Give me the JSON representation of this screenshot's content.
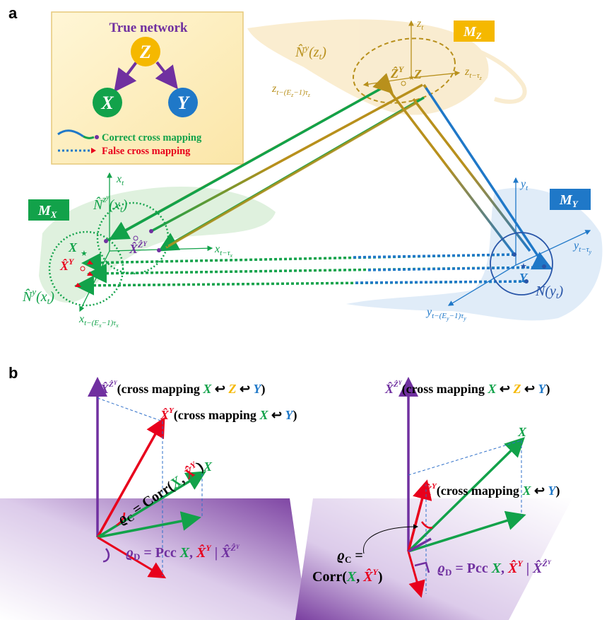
{
  "panel_a": {
    "label": "a",
    "legend": {
      "title": "True network",
      "nodes": [
        "Z",
        "X",
        "Y"
      ],
      "correct": "Correct cross mapping",
      "false": "False cross mapping"
    },
    "manifolds": {
      "mx": "M",
      "mx_sub": "X",
      "my": "M",
      "my_sub": "Y",
      "mz": "M",
      "mz_sub": "Z"
    },
    "axes_x": {
      "t": "x",
      "t_sub": "t",
      "lag": "x",
      "lag_sub": "t−τ",
      "lag_sub2": "x",
      "emb": "x",
      "emb_sub": "t−(E",
      "emb_sub2": "x",
      "emb_sub3": "−1)τ",
      "emb_sub4": "x"
    },
    "axes_y": {
      "t": "y",
      "t_sub": "t",
      "lag": "y",
      "lag_sub": "t−τ",
      "lag_sub2": "y",
      "emb": "y",
      "emb_sub": "t−(E",
      "emb_sub2": "y",
      "emb_sub3": "−1)τ",
      "emb_sub4": "y"
    },
    "axes_z": {
      "t": "z",
      "t_sub": "t",
      "lag": "z",
      "lag_sub": "t−τ",
      "lag_sub2": "z",
      "emb": "z",
      "emb_sub": "t−(E",
      "emb_sub2": "z",
      "emb_sub3": "−1)τ",
      "emb_sub4": "z"
    },
    "neighborhoods": {
      "nz": "N̂",
      "nz_sup": "y",
      "nz_arg": "(z",
      "nz_arg_sub": "t",
      "nz_close": ")",
      "nx_zy": "N̂",
      "nx_zy_sup": "z",
      "nx_zy_sup2": "y",
      "nx_zy_arg": "(x",
      "nx_zy_arg_sub": "t",
      "nx_zy_close": ")",
      "nx_y": "N̂",
      "nx_y_sup": "y",
      "nx_y_arg": "(x",
      "nx_y_arg_sub": "t",
      "nx_y_close": ")",
      "ny": "N",
      "ny_arg": "(y",
      "ny_arg_sub": "t",
      "ny_close": ")"
    },
    "points": {
      "X": "X",
      "Y": "Y",
      "Z": "Z",
      "Zhat": "Ẑ",
      "Zhat_sup": "Y",
      "Xhat": "X̂",
      "Xhat_sup": "Y",
      "XhatZ": "X̂",
      "XhatZ_sup": "Ẑ",
      "XhatZ_sup2": "Y"
    }
  },
  "panel_b": {
    "label": "b",
    "left": {
      "top_vec": "X̂",
      "top_sup": "Ẑ",
      "top_sup2": "Y",
      "top_text1": "(cross mapping ",
      "top_x": "X",
      "arr": " ↩ ",
      "top_z": "Z",
      "arr2": " ↩ ",
      "top_y": "Y",
      "top_close": ")",
      "red_vec": "X̂",
      "red_sup": "Y",
      "red_text1": "(cross mapping ",
      "red_x": "X",
      "red_arr": " ↩ ",
      "red_y": "Y",
      "red_close": ")",
      "green": "X",
      "rho_c": "ϱ",
      "rho_c_sub": "C",
      "rho_c_eq": " = Corr(",
      "rho_c_x": "X",
      "rho_c_comma": ", ",
      "rho_c_xh": "X̂",
      "rho_c_xh_sup": "Y",
      "rho_c_close": ")",
      "rho_d": "ϱ",
      "rho_d_sub": "D",
      "rho_d_eq": " = Pcc ",
      "rho_d_x": "X",
      "rho_d_comma": ", ",
      "rho_d_xh": "X̂",
      "rho_d_xh_sup": "Y",
      "rho_d_bar": " | ",
      "rho_d_xz": "X̂",
      "rho_d_xz_sup": "Ẑ",
      "rho_d_xz_sup2": "Y"
    },
    "right": {
      "top_vec": "X̂",
      "top_sup": "Ẑ",
      "top_sup2": "Y",
      "top_text1": "(cross mapping ",
      "top_x": "X",
      "arr": " ↩ ",
      "top_z": "Z",
      "arr2": " ↩ ",
      "top_y": "Y",
      "top_close": ")",
      "green": "X",
      "red_vec": "X̂",
      "red_sup": "Y",
      "red_text1": "(cross mapping ",
      "red_x": "X",
      "red_arr": " ↩ ",
      "red_y": "Y",
      "red_close": ")",
      "rho_c": "ϱ",
      "rho_c_sub": "C",
      "rho_c_eq": " =",
      "rho_c_line2": "Corr(",
      "rho_c_x": "X",
      "rho_c_comma": ", ",
      "rho_c_xh": "X̂",
      "rho_c_xh_sup": "Y",
      "rho_c_close": ")",
      "rho_d": "ϱ",
      "rho_d_sub": "D",
      "rho_d_eq": " = Pcc ",
      "rho_d_x": "X",
      "rho_d_comma": ", ",
      "rho_d_xh": "X̂",
      "rho_d_xh_sup": "Y",
      "rho_d_bar": " | ",
      "rho_d_xz": "X̂",
      "rho_d_xz_sup": "Ẑ",
      "rho_d_xz_sup2": "Y"
    }
  },
  "colors": {
    "purple": "#7030a0",
    "green": "#12a24a",
    "blue": "#1f78c8",
    "gold": "#b8901c",
    "orange": "#f5b800",
    "red": "#e8001c"
  }
}
